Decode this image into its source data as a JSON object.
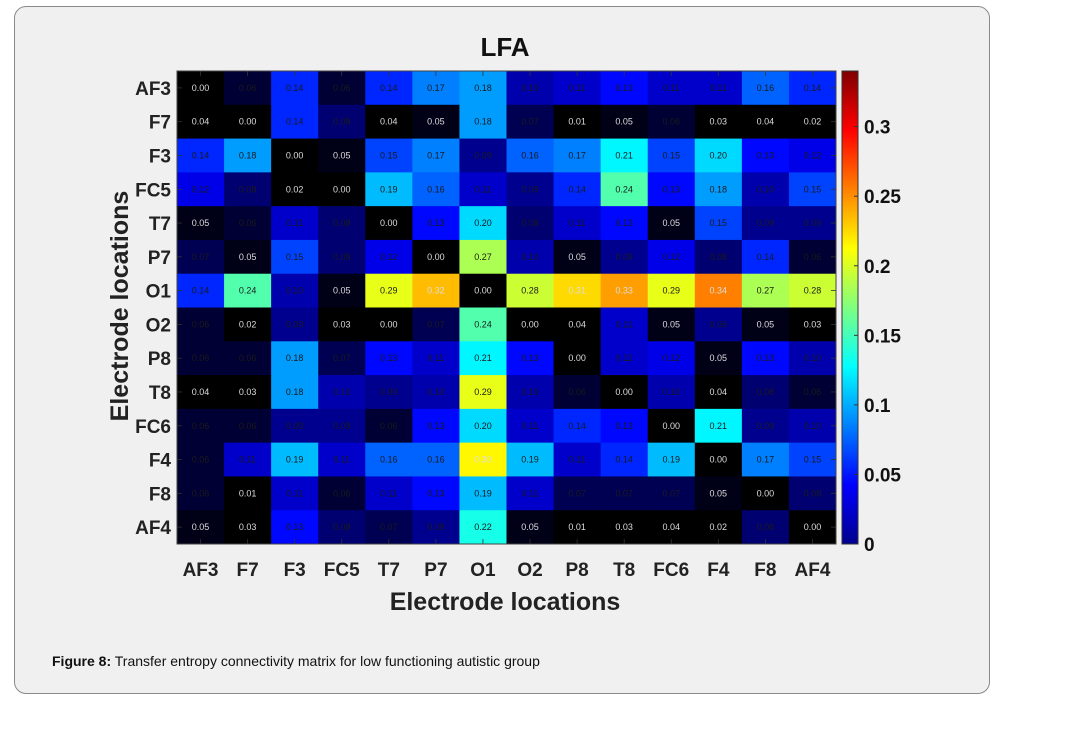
{
  "caption": {
    "label": "Figure 8:",
    "text": "Transfer entropy connectivity matrix for low functioning autistic group"
  },
  "chart_data": {
    "type": "heatmap",
    "title": "LFA",
    "xlabel": "Electrode locations",
    "ylabel": "Electrode locations",
    "x_categories": [
      "AF3",
      "F7",
      "F3",
      "FC5",
      "T7",
      "P7",
      "O1",
      "O2",
      "P8",
      "T8",
      "FC6",
      "F4",
      "F8",
      "AF4"
    ],
    "y_categories": [
      "AF3",
      "F7",
      "F3",
      "FC5",
      "T7",
      "P7",
      "O1",
      "O2",
      "P8",
      "T8",
      "FC6",
      "F4",
      "F8",
      "AF4"
    ],
    "values": [
      [
        0.0,
        0.06,
        0.14,
        0.06,
        0.14,
        0.17,
        0.18,
        0.1,
        0.11,
        0.13,
        0.11,
        0.11,
        0.16,
        0.14
      ],
      [
        0.04,
        0.0,
        0.14,
        0.08,
        0.04,
        0.05,
        0.18,
        0.07,
        0.01,
        0.05,
        0.06,
        0.03,
        0.04,
        0.02
      ],
      [
        0.14,
        0.18,
        0.0,
        0.05,
        0.15,
        0.17,
        0.09,
        0.16,
        0.17,
        0.21,
        0.15,
        0.2,
        0.13,
        0.12
      ],
      [
        0.12,
        0.08,
        0.02,
        0.0,
        0.19,
        0.16,
        0.11,
        0.09,
        0.14,
        0.24,
        0.13,
        0.18,
        0.1,
        0.15
      ],
      [
        0.05,
        0.06,
        0.11,
        0.08,
        0.0,
        0.13,
        0.2,
        0.08,
        0.11,
        0.13,
        0.05,
        0.15,
        0.09,
        0.09
      ],
      [
        0.07,
        0.05,
        0.15,
        0.08,
        0.12,
        0.0,
        0.27,
        0.1,
        0.05,
        0.09,
        0.12,
        0.08,
        0.14,
        0.06
      ],
      [
        0.14,
        0.24,
        0.1,
        0.05,
        0.29,
        0.32,
        0.0,
        0.28,
        0.31,
        0.33,
        0.29,
        0.34,
        0.27,
        0.28
      ],
      [
        0.06,
        0.02,
        0.09,
        0.03,
        0.0,
        0.07,
        0.24,
        0.0,
        0.04,
        0.11,
        0.05,
        0.09,
        0.05,
        0.03
      ],
      [
        0.06,
        0.06,
        0.18,
        0.07,
        0.13,
        0.11,
        0.21,
        0.13,
        0.0,
        0.11,
        0.12,
        0.05,
        0.13,
        0.1
      ],
      [
        0.04,
        0.03,
        0.18,
        0.1,
        0.09,
        0.1,
        0.29,
        0.1,
        0.06,
        0.0,
        0.1,
        0.04,
        0.08,
        0.06
      ],
      [
        0.06,
        0.06,
        0.09,
        0.09,
        0.06,
        0.13,
        0.2,
        0.11,
        0.14,
        0.13,
        0.0,
        0.21,
        0.09,
        0.1
      ],
      [
        0.06,
        0.11,
        0.19,
        0.11,
        0.16,
        0.16,
        0.3,
        0.19,
        0.11,
        0.14,
        0.19,
        0.0,
        0.17,
        0.15
      ],
      [
        0.06,
        0.01,
        0.11,
        0.06,
        0.11,
        0.13,
        0.19,
        0.11,
        0.07,
        0.07,
        0.07,
        0.05,
        0.0,
        0.08
      ],
      [
        0.05,
        0.03,
        0.13,
        0.08,
        0.07,
        0.09,
        0.22,
        0.05,
        0.01,
        0.03,
        0.04,
        0.02,
        0.08,
        0.0
      ]
    ],
    "colorbar": {
      "range": [
        0,
        0.34
      ],
      "ticks": [
        0,
        0.05,
        0.1,
        0.15,
        0.2,
        0.25,
        0.3
      ],
      "tick_labels": [
        "0",
        "0.05",
        "0.1",
        "0.15",
        "0.2",
        "0.25",
        "0.3"
      ]
    },
    "colormap": "jet"
  }
}
